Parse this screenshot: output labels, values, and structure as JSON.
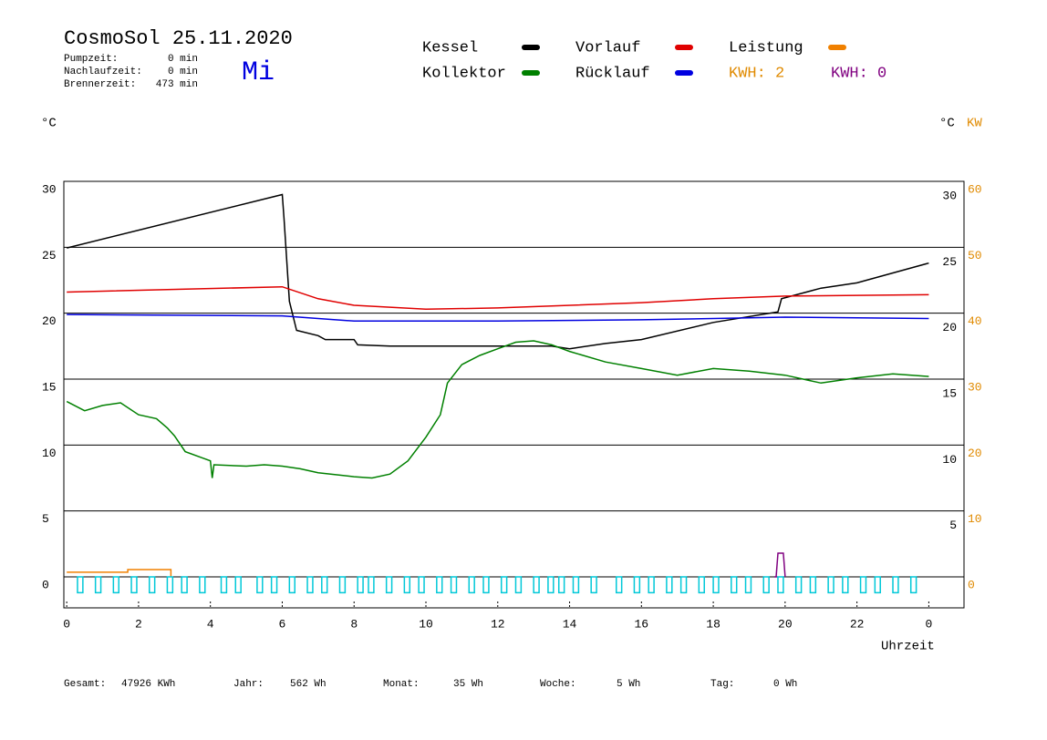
{
  "chart_data": {
    "type": "line",
    "title": "CosmoSol 25.11.2020",
    "weekday": "Mi",
    "info": [
      {
        "label": "Pumpzeit:",
        "value": "0 min"
      },
      {
        "label": "Nachlaufzeit:",
        "value": "0 min"
      },
      {
        "label": "Brennerzeit:",
        "value": "473 min"
      }
    ],
    "y_label": "°C",
    "y_right_label": "°C",
    "y2_label": "KW",
    "x_label": "Uhrzeit",
    "kwh_labels": [
      {
        "text": "KWH: 2",
        "color": "#e08a00"
      },
      {
        "text": "KWH: 0",
        "color": "#800080"
      }
    ],
    "xlim": [
      -0.08,
      24.98
    ],
    "xticks": [
      0,
      2,
      4,
      6,
      8,
      10,
      12,
      14,
      16,
      18,
      20,
      22,
      {
        "value": 24,
        "label": "0"
      }
    ],
    "ylim": [
      -2.35,
      30
    ],
    "yticks": [
      0,
      5,
      10,
      15,
      20,
      25,
      30
    ],
    "yticks_right": [
      5,
      10,
      15,
      20,
      25,
      30
    ],
    "y2lim": [
      -4.7,
      60
    ],
    "y2ticks": [
      0,
      10,
      20,
      30,
      40,
      50,
      60
    ],
    "grid": true,
    "series": [
      {
        "name": "Kessel",
        "color": "#000000",
        "x": [
          0,
          6,
          6.05,
          6.2,
          6.4,
          7,
          7.2,
          8,
          8.1,
          9,
          13.5,
          14,
          15,
          16,
          18,
          19.8,
          19.9,
          21,
          22,
          24
        ],
        "values": [
          24.95,
          29.0,
          27.2,
          20.9,
          18.7,
          18.3,
          18.0,
          18.0,
          17.6,
          17.5,
          17.5,
          17.3,
          17.7,
          18.0,
          19.3,
          20.1,
          21.1,
          21.9,
          22.3,
          23.8
        ]
      },
      {
        "name": "Kollektor",
        "color": "#008000",
        "x": [
          0,
          0.5,
          1,
          1.5,
          2,
          2.5,
          2.8,
          3,
          3.3,
          3.8,
          4,
          4.05,
          4.1,
          5,
          5.5,
          6,
          6.5,
          7,
          8,
          8.5,
          9,
          9.5,
          10,
          10.4,
          10.6,
          11,
          11.5,
          12,
          12.5,
          13,
          13.5,
          14,
          15,
          16,
          17,
          18,
          19,
          20,
          21,
          22,
          23,
          24
        ],
        "values": [
          13.3,
          12.6,
          13.0,
          13.2,
          12.3,
          12.0,
          11.3,
          10.7,
          9.5,
          9.0,
          8.8,
          7.5,
          8.5,
          8.4,
          8.5,
          8.4,
          8.2,
          7.9,
          7.6,
          7.5,
          7.8,
          8.8,
          10.6,
          12.3,
          14.7,
          16.1,
          16.8,
          17.3,
          17.8,
          17.9,
          17.6,
          17.1,
          16.3,
          15.8,
          15.3,
          15.8,
          15.6,
          15.3,
          14.7,
          15.1,
          15.4,
          15.2
        ]
      },
      {
        "name": "Vorlauf",
        "color": "#e00000",
        "x": [
          0,
          6,
          7,
          8,
          10,
          12,
          16,
          18,
          20,
          24
        ],
        "values": [
          21.6,
          22.0,
          21.1,
          20.6,
          20.3,
          20.4,
          20.8,
          21.1,
          21.3,
          21.4
        ]
      },
      {
        "name": "Rücklauf",
        "color": "#0000e0",
        "x": [
          0,
          6,
          7,
          8,
          12,
          16,
          18,
          20,
          24
        ],
        "values": [
          19.9,
          19.8,
          19.6,
          19.4,
          19.4,
          19.5,
          19.6,
          19.7,
          19.6
        ]
      },
      {
        "name": "Leistung",
        "color": "#f08000",
        "axis": "y2",
        "x": [
          0,
          1.7,
          1.7,
          2.9,
          2.9
        ],
        "values": [
          0.7,
          0.7,
          1.1,
          1.1,
          0
        ]
      },
      {
        "color": "#800080",
        "axis": "y2",
        "x": [
          19.7,
          19.75,
          19.8,
          19.95,
          20.0
        ],
        "values": [
          0,
          0,
          3.6,
          3.6,
          0
        ]
      },
      {
        "color": "#00c8d8",
        "style": "pulse",
        "width": 0.15,
        "x": [
          0.3,
          0.8,
          1.3,
          1.8,
          2.3,
          2.8,
          3.2,
          3.7,
          4.3,
          4.7,
          5.3,
          5.7,
          6.2,
          6.7,
          7.1,
          7.6,
          8.1,
          8.4,
          8.9,
          9.4,
          9.8,
          10.3,
          10.7,
          11.2,
          11.6,
          12.1,
          12.5,
          13.0,
          13.4,
          13.7,
          14.1,
          14.6,
          15.3,
          15.8,
          16.2,
          16.7,
          17.1,
          17.6,
          18.0,
          18.5,
          18.9,
          19.4,
          19.8,
          20.3,
          20.7,
          21.2,
          21.6,
          22.1,
          22.5,
          23.0,
          23.5
        ],
        "values": [
          -1.2,
          -1.2,
          -1.2,
          -1.2,
          -1.2,
          -1.2,
          -1.2,
          -1.2,
          -1.2,
          -1.2,
          -1.2,
          -1.2,
          -1.2,
          -1.2,
          -1.2,
          -1.2,
          -1.2,
          -1.2,
          -1.2,
          -1.2,
          -1.2,
          -1.2,
          -1.2,
          -1.2,
          -1.2,
          -1.2,
          -1.2,
          -1.2,
          -1.2,
          -1.2,
          -1.2,
          -1.2,
          -1.2,
          -1.2,
          -1.2,
          -1.2,
          -1.2,
          -1.2,
          -1.2,
          -1.2,
          -1.2,
          -1.2,
          -1.2,
          -1.2,
          -1.2,
          -1.2,
          -1.2,
          -1.2,
          -1.2,
          -1.2,
          -1.2
        ]
      }
    ],
    "totals": [
      {
        "label": "Gesamt:",
        "value": "47926 KWh"
      },
      {
        "label": "Jahr:",
        "value": "562 Wh"
      },
      {
        "label": "Monat:",
        "value": "35 Wh"
      },
      {
        "label": "Woche:",
        "value": "5 Wh"
      },
      {
        "label": "Tag:",
        "value": "0 Wh"
      }
    ]
  }
}
